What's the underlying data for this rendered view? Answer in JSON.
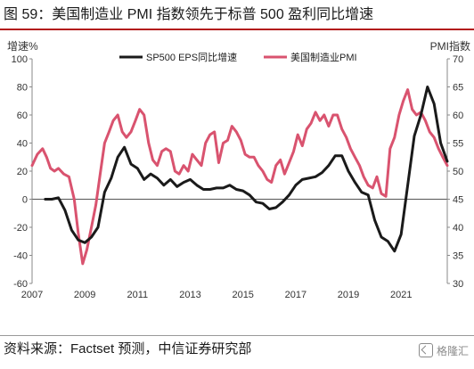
{
  "figure": {
    "title": "图 59：美国制造业 PMI 指数领先于标普 500 盈利同比增速",
    "source": "资料来源：Factset 预测，中信证券研究部",
    "badge_text": "格隆汇"
  },
  "chart_data": {
    "type": "line",
    "title": "",
    "left_axis": {
      "label": "增速%",
      "range": [
        -60,
        100
      ],
      "ticks": [
        -60,
        -40,
        -20,
        0,
        20,
        40,
        60,
        80,
        100
      ]
    },
    "right_axis": {
      "label": "PMI指数",
      "range": [
        30,
        70
      ],
      "ticks": [
        30,
        35,
        40,
        45,
        50,
        55,
        60,
        65,
        70
      ]
    },
    "x_axis": {
      "range": [
        2007,
        2022.75
      ],
      "ticks": [
        "2007",
        "2009",
        "2011",
        "2013",
        "2015",
        "2017",
        "2019",
        "2021"
      ]
    },
    "grid": false,
    "legend": "top-center",
    "series": [
      {
        "name": "SP500 EPS同比增速",
        "axis": "left",
        "color": "#1a1a1a",
        "points": [
          [
            2007.5,
            0
          ],
          [
            2007.75,
            0
          ],
          [
            2008.0,
            1
          ],
          [
            2008.25,
            -8
          ],
          [
            2008.5,
            -22
          ],
          [
            2008.75,
            -29
          ],
          [
            2009.0,
            -31
          ],
          [
            2009.25,
            -27
          ],
          [
            2009.5,
            -20
          ],
          [
            2009.75,
            5
          ],
          [
            2010.0,
            15
          ],
          [
            2010.25,
            30
          ],
          [
            2010.5,
            37
          ],
          [
            2010.75,
            25
          ],
          [
            2011.0,
            22
          ],
          [
            2011.25,
            14
          ],
          [
            2011.5,
            18
          ],
          [
            2011.75,
            15
          ],
          [
            2012.0,
            10
          ],
          [
            2012.25,
            14
          ],
          [
            2012.5,
            9
          ],
          [
            2012.75,
            12
          ],
          [
            2013.0,
            14
          ],
          [
            2013.25,
            10
          ],
          [
            2013.5,
            7
          ],
          [
            2013.75,
            7
          ],
          [
            2014.0,
            8
          ],
          [
            2014.25,
            8
          ],
          [
            2014.5,
            10
          ],
          [
            2014.75,
            7
          ],
          [
            2015.0,
            6
          ],
          [
            2015.25,
            3
          ],
          [
            2015.5,
            -2
          ],
          [
            2015.75,
            -3
          ],
          [
            2016.0,
            -7
          ],
          [
            2016.25,
            -6
          ],
          [
            2016.5,
            -2
          ],
          [
            2016.75,
            3
          ],
          [
            2017.0,
            10
          ],
          [
            2017.25,
            14
          ],
          [
            2017.5,
            15
          ],
          [
            2017.75,
            16
          ],
          [
            2018.0,
            19
          ],
          [
            2018.25,
            24
          ],
          [
            2018.5,
            31
          ],
          [
            2018.75,
            31
          ],
          [
            2019.0,
            20
          ],
          [
            2019.25,
            12
          ],
          [
            2019.5,
            5
          ],
          [
            2019.75,
            3
          ],
          [
            2020.0,
            -15
          ],
          [
            2020.25,
            -27
          ],
          [
            2020.5,
            -30
          ],
          [
            2020.75,
            -37
          ],
          [
            2021.0,
            -25
          ],
          [
            2021.25,
            10
          ],
          [
            2021.5,
            45
          ],
          [
            2021.75,
            60
          ],
          [
            2022.0,
            80
          ],
          [
            2022.25,
            68
          ],
          [
            2022.5,
            40
          ],
          [
            2022.75,
            27
          ]
        ]
      },
      {
        "name": "美国制造业PMI",
        "axis": "right",
        "color": "#d9536f",
        "points": [
          [
            2007.0,
            51
          ],
          [
            2007.2,
            53
          ],
          [
            2007.4,
            54
          ],
          [
            2007.55,
            52.5
          ],
          [
            2007.7,
            50.5
          ],
          [
            2007.85,
            50
          ],
          [
            2008.0,
            50.5
          ],
          [
            2008.2,
            49.5
          ],
          [
            2008.4,
            49
          ],
          [
            2008.6,
            45
          ],
          [
            2008.75,
            39
          ],
          [
            2008.92,
            33.5
          ],
          [
            2009.08,
            36
          ],
          [
            2009.25,
            40
          ],
          [
            2009.42,
            44
          ],
          [
            2009.6,
            50
          ],
          [
            2009.75,
            55
          ],
          [
            2009.92,
            57
          ],
          [
            2010.08,
            59
          ],
          [
            2010.25,
            60
          ],
          [
            2010.42,
            57
          ],
          [
            2010.58,
            56
          ],
          [
            2010.75,
            57
          ],
          [
            2010.92,
            59
          ],
          [
            2011.08,
            61
          ],
          [
            2011.25,
            60
          ],
          [
            2011.42,
            55
          ],
          [
            2011.58,
            52
          ],
          [
            2011.75,
            51
          ],
          [
            2011.92,
            53.5
          ],
          [
            2012.08,
            54
          ],
          [
            2012.25,
            53.5
          ],
          [
            2012.42,
            50
          ],
          [
            2012.58,
            49.5
          ],
          [
            2012.75,
            51
          ],
          [
            2012.92,
            50
          ],
          [
            2013.08,
            53
          ],
          [
            2013.25,
            52
          ],
          [
            2013.42,
            51
          ],
          [
            2013.58,
            55
          ],
          [
            2013.75,
            56.5
          ],
          [
            2013.92,
            57
          ],
          [
            2014.08,
            51.5
          ],
          [
            2014.25,
            55
          ],
          [
            2014.42,
            55.5
          ],
          [
            2014.58,
            58
          ],
          [
            2014.75,
            57
          ],
          [
            2014.92,
            55.5
          ],
          [
            2015.08,
            53
          ],
          [
            2015.25,
            52.5
          ],
          [
            2015.42,
            52.5
          ],
          [
            2015.58,
            51
          ],
          [
            2015.75,
            50
          ],
          [
            2015.92,
            48.5
          ],
          [
            2016.08,
            48
          ],
          [
            2016.25,
            51
          ],
          [
            2016.42,
            52
          ],
          [
            2016.58,
            49.5
          ],
          [
            2016.75,
            51.5
          ],
          [
            2016.92,
            53.5
          ],
          [
            2017.08,
            56.5
          ],
          [
            2017.25,
            54.5
          ],
          [
            2017.42,
            57.5
          ],
          [
            2017.58,
            58.5
          ],
          [
            2017.75,
            60.5
          ],
          [
            2017.92,
            59
          ],
          [
            2018.08,
            60
          ],
          [
            2018.25,
            58
          ],
          [
            2018.42,
            60
          ],
          [
            2018.58,
            60
          ],
          [
            2018.75,
            57.5
          ],
          [
            2018.92,
            56
          ],
          [
            2019.08,
            54
          ],
          [
            2019.25,
            52.5
          ],
          [
            2019.42,
            51
          ],
          [
            2019.58,
            49
          ],
          [
            2019.75,
            47.5
          ],
          [
            2019.92,
            47
          ],
          [
            2020.08,
            49
          ],
          [
            2020.25,
            46
          ],
          [
            2020.42,
            45.5
          ],
          [
            2020.58,
            54
          ],
          [
            2020.75,
            56
          ],
          [
            2020.92,
            60
          ],
          [
            2021.08,
            62.5
          ],
          [
            2021.25,
            64.5
          ],
          [
            2021.42,
            61
          ],
          [
            2021.58,
            60
          ],
          [
            2021.75,
            60.5
          ],
          [
            2021.92,
            59
          ],
          [
            2022.08,
            57
          ],
          [
            2022.25,
            56
          ],
          [
            2022.42,
            54
          ],
          [
            2022.58,
            52.5
          ],
          [
            2022.75,
            51
          ]
        ]
      }
    ]
  }
}
